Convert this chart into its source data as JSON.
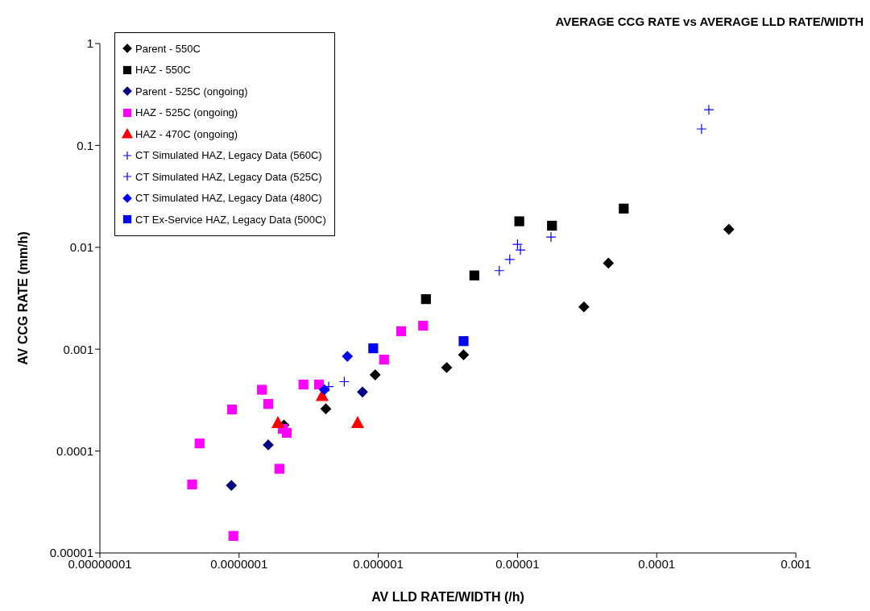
{
  "chart_data": {
    "type": "scatter",
    "title": "AVERAGE CCG RATE vs AVERAGE LLD RATE/WIDTH",
    "xlabel": "AV LLD RATE/WIDTH (/h)",
    "ylabel": "AV CCG RATE (mm/h)",
    "log": "xy",
    "grid": false,
    "legend": "top left",
    "xlim": [
      1e-08,
      0.001
    ],
    "xticks": [
      {
        "value": 1e-08,
        "label": "0.00000001"
      },
      {
        "value": 1e-07,
        "label": "0.0000001"
      },
      {
        "value": 1e-06,
        "label": "0.000001"
      },
      {
        "value": 1e-05,
        "label": "0.00001"
      },
      {
        "value": 0.0001,
        "label": "0.0001"
      },
      {
        "value": 0.001,
        "label": "0.001"
      }
    ],
    "ylim": [
      1e-05,
      1
    ],
    "yticks": [
      {
        "value": 1e-05,
        "label": "0.00001"
      },
      {
        "value": 0.0001,
        "label": "0.0001"
      },
      {
        "value": 0.001,
        "label": "0.001"
      },
      {
        "value": 0.01,
        "label": "0.01"
      },
      {
        "value": 0.1,
        "label": "0.1"
      },
      {
        "value": 1,
        "label": "1"
      }
    ],
    "series": [
      {
        "name": "Parent - 550C",
        "color": "#000000",
        "marker": "diamond",
        "x": [
          2.1e-07,
          4.2e-07,
          9.5e-07,
          3.1e-06,
          4.1e-06,
          3e-05,
          4.5e-05,
          0.00033
        ],
        "values": [
          0.00018,
          0.00026,
          0.00056,
          0.00066,
          0.00088,
          0.0026,
          0.007,
          0.015
        ]
      },
      {
        "name": "HAZ - 550C",
        "color": "#000000",
        "marker": "square",
        "x": [
          2.2e-06,
          4.9e-06,
          1.03e-05,
          1.77e-05,
          5.8e-05
        ],
        "values": [
          0.0031,
          0.0053,
          0.018,
          0.0163,
          0.024
        ]
      },
      {
        "name": "Parent - 525C (ongoing)",
        "color": "#000080",
        "marker": "diamond",
        "x": [
          8.8e-08,
          1.62e-07,
          7.7e-07
        ],
        "values": [
          4.6e-05,
          0.000115,
          0.00038
        ]
      },
      {
        "name": "HAZ - 525C (ongoing)",
        "color": "#ff00ff",
        "marker": "square",
        "x": [
          2.1e-06,
          1.46e-06,
          1.1e-06,
          1.46e-07,
          2.9e-07,
          3.75e-07,
          1.62e-07,
          8.9e-08,
          2.2e-07,
          2.06e-07,
          5.2e-08,
          1.95e-07,
          4.6e-08,
          9.1e-08
        ],
        "values": [
          0.0017,
          0.0015,
          0.00079,
          0.0004,
          0.00045,
          0.00045,
          0.00029,
          0.000256,
          0.000151,
          0.000165,
          0.000119,
          6.7e-05,
          4.7e-05,
          1.47e-05
        ]
      },
      {
        "name": "HAZ - 470C (ongoing)",
        "color": "#ff0000",
        "marker": "triangle",
        "x": [
          1.9e-07,
          3.95e-07,
          7.1e-07
        ],
        "values": [
          0.00019,
          0.00035,
          0.00019
        ]
      },
      {
        "name": "CT Simulated HAZ, Legacy Data (560C)",
        "color": "#0000ff",
        "marker": "cross",
        "x": [
          0.000237,
          0.00021,
          1.74e-05
        ],
        "values": [
          0.224,
          0.145,
          0.0126
        ]
      },
      {
        "name": "CT Simulated HAZ, Legacy Data (525C)",
        "color": "#0000ff",
        "marker": "cross",
        "x": [
          1e-05,
          1.05e-05,
          8.8e-06,
          7.4e-06,
          5.7e-07,
          4.4e-07
        ],
        "values": [
          0.0107,
          0.0094,
          0.0076,
          0.0059,
          0.00048,
          0.00043
        ]
      },
      {
        "name": "CT Simulated HAZ, Legacy Data (480C)",
        "color": "#0000ff",
        "marker": "diamond",
        "x": [
          6e-07,
          4.1e-07
        ],
        "values": [
          0.00085,
          0.0004
        ]
      },
      {
        "name": "CT Ex-Service HAZ, Legacy Data (500C)",
        "color": "#0000ff",
        "marker": "square",
        "x": [
          9.2e-07,
          4.1e-06
        ],
        "values": [
          0.00102,
          0.0012
        ]
      }
    ]
  }
}
